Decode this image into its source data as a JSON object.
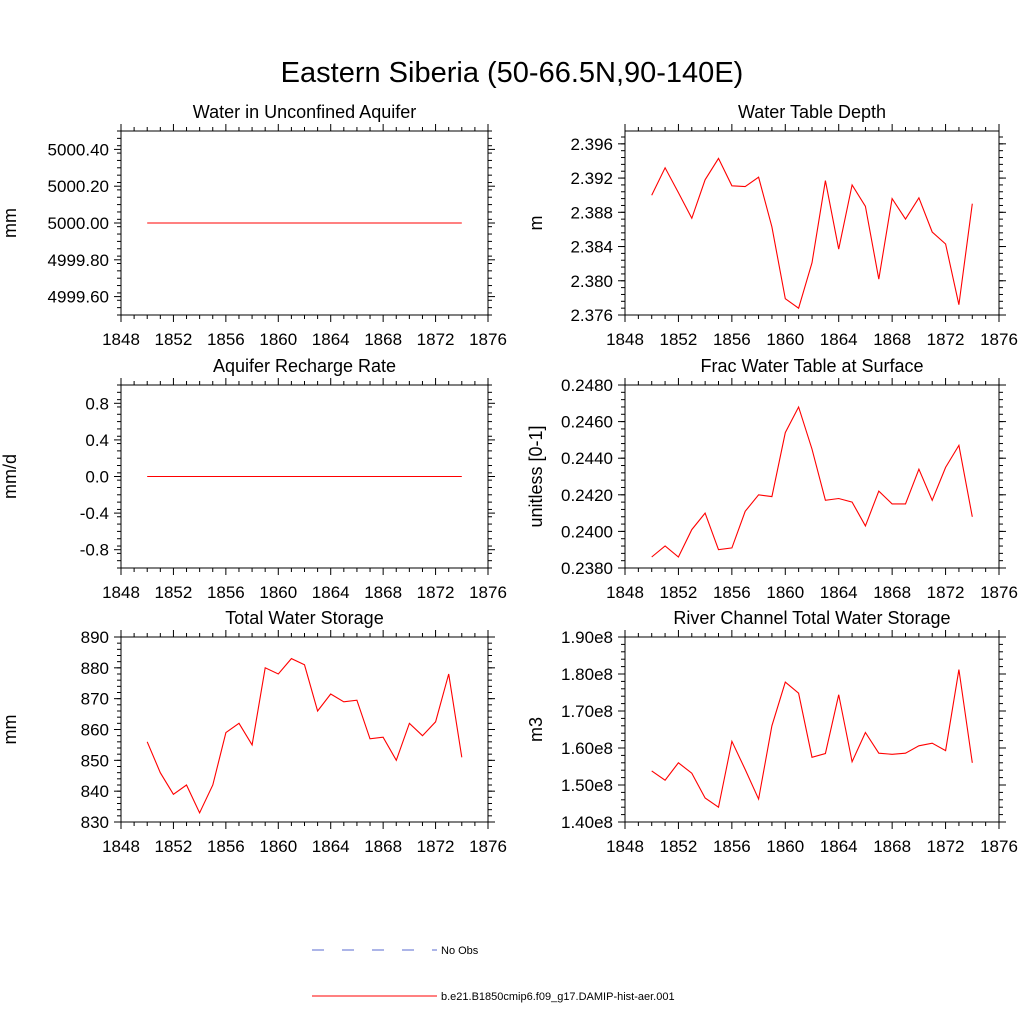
{
  "figure_title": "Eastern Siberia (50-66.5N,90-140E)",
  "legend": {
    "no_obs": "No Obs",
    "no_obs_color": "#5a6bd0",
    "model": "b.e21.B1850cmip6.f09_g17.DAMIP-hist-aer.001",
    "model_color": "#ff0000"
  },
  "chart_data": [
    {
      "type": "line",
      "title": "Water in Unconfined Aquifer",
      "xlabel": "",
      "ylabel": "mm",
      "xlim": [
        1848,
        1876
      ],
      "ylim": [
        4999.5,
        5000.5
      ],
      "xticks": [
        1848,
        1852,
        1856,
        1860,
        1864,
        1868,
        1872,
        1876
      ],
      "yticks": [
        4999.6,
        4999.8,
        5000.0,
        5000.2,
        5000.4
      ],
      "ytick_labels": [
        "4999.60",
        "4999.80",
        "5000.00",
        "5000.20",
        "5000.40"
      ],
      "x": [
        1850,
        1851,
        1852,
        1853,
        1854,
        1855,
        1856,
        1857,
        1858,
        1859,
        1860,
        1861,
        1862,
        1863,
        1864,
        1865,
        1866,
        1867,
        1868,
        1869,
        1870,
        1871,
        1872,
        1873,
        1874
      ],
      "series": [
        {
          "values": [
            5000.0,
            5000.0,
            5000.0,
            5000.0,
            5000.0,
            5000.0,
            5000.0,
            5000.0,
            5000.0,
            5000.0,
            5000.0,
            5000.0,
            5000.0,
            5000.0,
            5000.0,
            5000.0,
            5000.0,
            5000.0,
            5000.0,
            5000.0,
            5000.0,
            5000.0,
            5000.0,
            5000.0,
            5000.0
          ]
        }
      ]
    },
    {
      "type": "line",
      "title": "Water Table Depth",
      "xlabel": "",
      "ylabel": "m",
      "xlim": [
        1848,
        1876
      ],
      "ylim": [
        2.376,
        2.3975
      ],
      "xticks": [
        1848,
        1852,
        1856,
        1860,
        1864,
        1868,
        1872,
        1876
      ],
      "yticks": [
        2.376,
        2.38,
        2.384,
        2.388,
        2.392,
        2.396
      ],
      "ytick_labels": [
        "2.376",
        "2.380",
        "2.384",
        "2.388",
        "2.392",
        "2.396"
      ],
      "x": [
        1850,
        1851,
        1852,
        1853,
        1854,
        1855,
        1856,
        1857,
        1858,
        1859,
        1860,
        1861,
        1862,
        1863,
        1864,
        1865,
        1866,
        1867,
        1868,
        1869,
        1870,
        1871,
        1872,
        1873,
        1874
      ],
      "series": [
        {
          "values": [
            2.39,
            2.3932,
            2.3903,
            2.3873,
            2.3918,
            2.3943,
            2.3911,
            2.391,
            2.3921,
            2.3863,
            2.3779,
            2.3768,
            2.3821,
            2.3917,
            2.3837,
            2.3912,
            2.3887,
            2.3802,
            2.3896,
            2.3872,
            2.3897,
            2.3857,
            2.3843,
            2.3772,
            2.389
          ]
        }
      ]
    },
    {
      "type": "line",
      "title": "Aquifer Recharge Rate",
      "xlabel": "",
      "ylabel": "mm/d",
      "xlim": [
        1848,
        1876
      ],
      "ylim": [
        -1.0,
        1.0
      ],
      "xticks": [
        1848,
        1852,
        1856,
        1860,
        1864,
        1868,
        1872,
        1876
      ],
      "yticks": [
        -0.8,
        -0.4,
        0.0,
        0.4,
        0.8
      ],
      "ytick_labels": [
        "-0.8",
        "-0.4",
        "0.0",
        "0.4",
        "0.8"
      ],
      "x": [
        1850,
        1851,
        1852,
        1853,
        1854,
        1855,
        1856,
        1857,
        1858,
        1859,
        1860,
        1861,
        1862,
        1863,
        1864,
        1865,
        1866,
        1867,
        1868,
        1869,
        1870,
        1871,
        1872,
        1873,
        1874
      ],
      "series": [
        {
          "values": [
            0.0,
            0.0,
            0.0,
            0.0,
            0.0,
            0.0,
            0.0,
            0.0,
            0.0,
            0.0,
            0.0,
            0.0,
            0.0,
            0.0,
            0.0,
            0.0,
            0.0,
            0.0,
            0.0,
            0.0,
            0.0,
            0.0,
            0.0,
            0.0,
            0.0
          ]
        }
      ]
    },
    {
      "type": "line",
      "title": "Frac Water Table at Surface",
      "xlabel": "",
      "ylabel": "unitless [0-1]",
      "xlim": [
        1848,
        1876
      ],
      "ylim": [
        0.238,
        0.248
      ],
      "xticks": [
        1848,
        1852,
        1856,
        1860,
        1864,
        1868,
        1872,
        1876
      ],
      "yticks": [
        0.238,
        0.24,
        0.242,
        0.244,
        0.246,
        0.248
      ],
      "ytick_labels": [
        "0.2380",
        "0.2400",
        "0.2420",
        "0.2440",
        "0.2460",
        "0.2480"
      ],
      "x": [
        1850,
        1851,
        1852,
        1853,
        1854,
        1855,
        1856,
        1857,
        1858,
        1859,
        1860,
        1861,
        1862,
        1863,
        1864,
        1865,
        1866,
        1867,
        1868,
        1869,
        1870,
        1871,
        1872,
        1873,
        1874
      ],
      "series": [
        {
          "values": [
            0.2386,
            0.2392,
            0.2386,
            0.2401,
            0.241,
            0.239,
            0.2391,
            0.2411,
            0.242,
            0.2419,
            0.2454,
            0.2468,
            0.2445,
            0.2417,
            0.2418,
            0.2416,
            0.2403,
            0.2422,
            0.2415,
            0.2415,
            0.2434,
            0.2417,
            0.2435,
            0.2447,
            0.2408
          ]
        }
      ]
    },
    {
      "type": "line",
      "title": "Total Water Storage",
      "xlabel": "",
      "ylabel": "mm",
      "xlim": [
        1848,
        1876
      ],
      "ylim": [
        830,
        890
      ],
      "xticks": [
        1848,
        1852,
        1856,
        1860,
        1864,
        1868,
        1872,
        1876
      ],
      "yticks": [
        830,
        840,
        850,
        860,
        870,
        880,
        890
      ],
      "ytick_labels": [
        "830",
        "840",
        "850",
        "860",
        "870",
        "880",
        "890"
      ],
      "x": [
        1850,
        1851,
        1852,
        1853,
        1854,
        1855,
        1856,
        1857,
        1858,
        1859,
        1860,
        1861,
        1862,
        1863,
        1864,
        1865,
        1866,
        1867,
        1868,
        1869,
        1870,
        1871,
        1872,
        1873,
        1874
      ],
      "series": [
        {
          "values": [
            856,
            846,
            839,
            842,
            833,
            842,
            859,
            862,
            855,
            880,
            878,
            883,
            881,
            866,
            871.5,
            869,
            869.5,
            857,
            857.5,
            850,
            862,
            858,
            862.5,
            878,
            851
          ]
        }
      ]
    },
    {
      "type": "line",
      "title": "River Channel Total Water Storage",
      "xlabel": "",
      "ylabel": "m3",
      "xlim": [
        1848,
        1876
      ],
      "ylim": [
        140000000,
        190000000
      ],
      "xticks": [
        1848,
        1852,
        1856,
        1860,
        1864,
        1868,
        1872,
        1876
      ],
      "yticks": [
        140000000,
        150000000,
        160000000,
        170000000,
        180000000,
        190000000
      ],
      "ytick_labels": [
        "1.40e8",
        "1.50e8",
        "1.60e8",
        "1.70e8",
        "1.80e8",
        "1.90e8"
      ],
      "x": [
        1850,
        1851,
        1852,
        1853,
        1854,
        1855,
        1856,
        1857,
        1858,
        1859,
        1860,
        1861,
        1862,
        1863,
        1864,
        1865,
        1866,
        1867,
        1868,
        1869,
        1870,
        1871,
        1872,
        1873,
        1874
      ],
      "series": [
        {
          "values": [
            153800000,
            151300000,
            156000000,
            153200000,
            146500000,
            144000000,
            161800000,
            154200000,
            146200000,
            166000000,
            177800000,
            174800000,
            157500000,
            158500000,
            174400000,
            156300000,
            164200000,
            158600000,
            158300000,
            158600000,
            160600000,
            161300000,
            159300000,
            181200000,
            156000000
          ]
        }
      ]
    }
  ]
}
